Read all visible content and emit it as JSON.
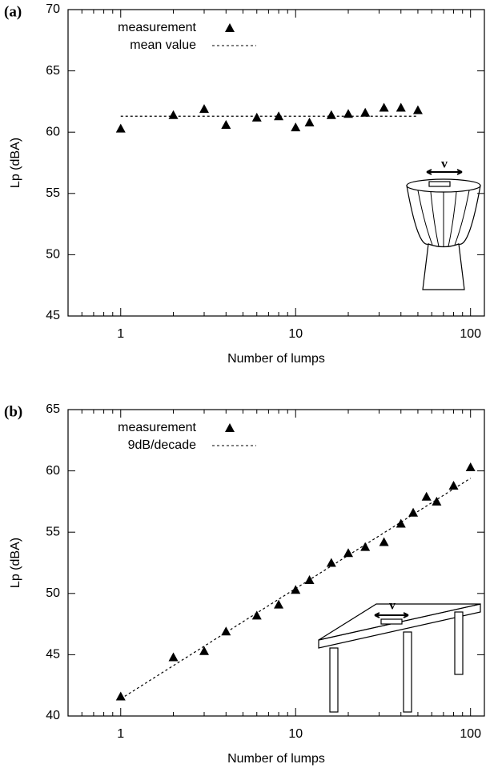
{
  "chart_data": [
    {
      "type": "scatter",
      "panel_label": "(a)",
      "x_label": "Number of lumps",
      "y_label": "Lp (dBA)",
      "illustration_label": "v",
      "x_log": true,
      "xlim": [
        0.5,
        120
      ],
      "xticks": [
        1,
        10,
        100
      ],
      "xminorticks": [
        0.6,
        0.7,
        0.8,
        0.9,
        2,
        3,
        4,
        5,
        6,
        7,
        8,
        9,
        20,
        30,
        40,
        50,
        60,
        70,
        80,
        90
      ],
      "ylim": [
        45,
        70
      ],
      "yticks": [
        45,
        50,
        55,
        60,
        65,
        70
      ],
      "series": [
        {
          "name": "measurement",
          "color": "#000000",
          "marker": "triangle",
          "x": [
            1,
            2,
            3,
            4,
            6,
            8,
            10,
            12,
            16,
            20,
            25,
            32,
            40,
            50
          ],
          "values": [
            60.3,
            61.4,
            61.9,
            60.6,
            61.2,
            61.3,
            60.4,
            60.8,
            61.4,
            61.5,
            61.6,
            62.0,
            62.0,
            61.8
          ]
        },
        {
          "name": "mean value",
          "color": "#000000",
          "line_style": "dotted",
          "x": [
            1,
            50
          ],
          "values": [
            61.3,
            61.3
          ]
        }
      ]
    },
    {
      "type": "scatter",
      "panel_label": "(b)",
      "x_label": "Number of lumps",
      "y_label": "Lp (dBA)",
      "illustration_label": "v",
      "x_log": true,
      "xlim": [
        0.5,
        120
      ],
      "xticks": [
        1,
        10,
        100
      ],
      "xminorticks": [
        0.6,
        0.7,
        0.8,
        0.9,
        2,
        3,
        4,
        5,
        6,
        7,
        8,
        9,
        20,
        30,
        40,
        50,
        60,
        70,
        80,
        90
      ],
      "ylim": [
        40,
        65
      ],
      "yticks": [
        40,
        45,
        50,
        55,
        60,
        65
      ],
      "series": [
        {
          "name": "measurement",
          "color": "#000000",
          "marker": "triangle",
          "x": [
            1,
            2,
            3,
            4,
            6,
            8,
            10,
            12,
            16,
            20,
            25,
            32,
            40,
            47,
            56,
            64,
            80,
            100
          ],
          "values": [
            41.6,
            44.8,
            45.3,
            46.9,
            48.2,
            49.1,
            50.3,
            51.1,
            52.5,
            53.3,
            53.8,
            54.2,
            55.7,
            56.6,
            57.9,
            57.5,
            58.8,
            60.3
          ]
        },
        {
          "name": "9dB/decade",
          "color": "#000000",
          "line_style": "dotted",
          "x": [
            1,
            100
          ],
          "values": [
            41.4,
            59.4
          ]
        }
      ]
    }
  ]
}
